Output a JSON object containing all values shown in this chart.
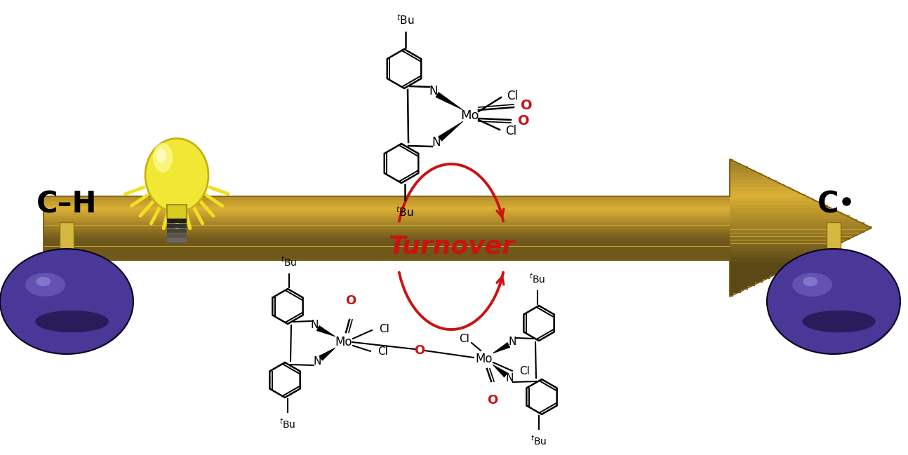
{
  "bg_color": "#ffffff",
  "gold_main": "#C8A030",
  "gold_light": "#E8D060",
  "gold_dark": "#806010",
  "gold_mid": "#B08020",
  "sphere_purple": "#4A3898",
  "sphere_dark": "#1A0848",
  "sphere_highlight": "#7A68C8",
  "stem_gold": "#D4B840",
  "stem_dark": "#907010",
  "turnover_red": "#CC1111",
  "bulb_yellow": "#F0E030",
  "bulb_pale": "#F8F080",
  "ch_text": "C–H",
  "c_text": "C",
  "turnover_text": "Turnover",
  "fig_width": 12.94,
  "fig_height": 6.49,
  "dpi": 100
}
